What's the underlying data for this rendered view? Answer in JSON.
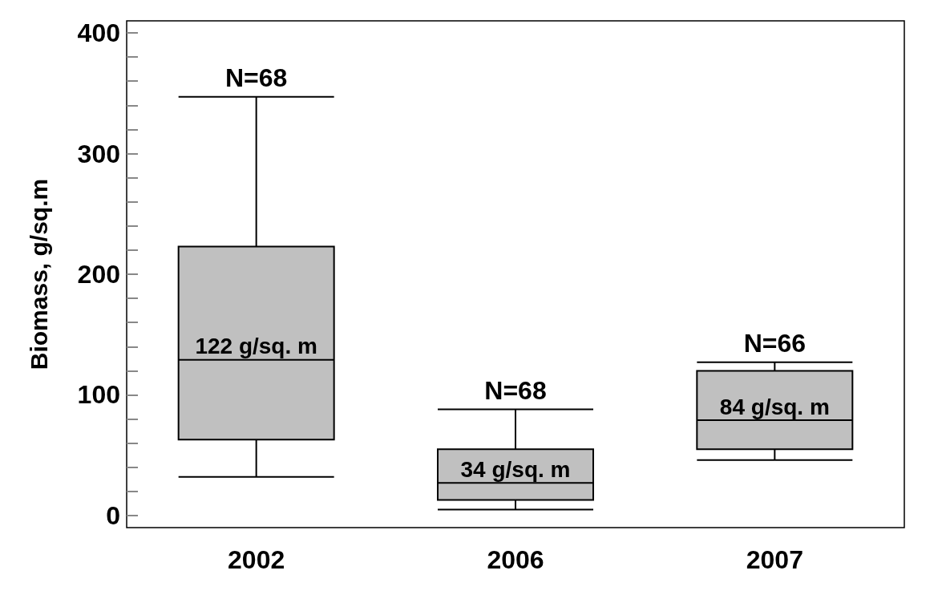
{
  "chart_data": {
    "type": "box",
    "ylabel": "Biomass, g/sq.m",
    "categories": [
      "2002",
      "2006",
      "2007"
    ],
    "color": "#c0c0c0",
    "boxes": [
      {
        "low": 32,
        "q1": 63,
        "median": 129,
        "q3": 223,
        "high": 347
      },
      {
        "low": 5,
        "q1": 13,
        "median": 27,
        "q3": 55,
        "high": 88
      },
      {
        "low": 46,
        "q1": 55,
        "median": 79,
        "q3": 120,
        "high": 127
      }
    ],
    "ylim": [
      -10,
      410
    ],
    "yticks": [
      0,
      {
        "value": 20,
        "label": null
      },
      {
        "value": 40,
        "label": null
      },
      {
        "value": 60,
        "label": null
      },
      {
        "value": 80,
        "label": null
      },
      100,
      {
        "value": 120,
        "label": null
      },
      {
        "value": 140,
        "label": null
      },
      {
        "value": 160,
        "label": null
      },
      {
        "value": 180,
        "label": null
      },
      200,
      {
        "value": 220,
        "label": null
      },
      {
        "value": 240,
        "label": null
      },
      {
        "value": 260,
        "label": null
      },
      {
        "value": 280,
        "label": null
      },
      300,
      {
        "value": 320,
        "label": null
      },
      {
        "value": 340,
        "label": null
      },
      {
        "value": 360,
        "label": null
      },
      {
        "value": 380,
        "label": null
      },
      400
    ],
    "grid": false,
    "annotations": [
      "N=68",
      "N=68",
      "N=66",
      {
        "text": "122 g/sq. m",
        "x": "2002",
        "y": 129
      },
      {
        "text": "34 g/sq. m",
        "x": "2006",
        "y": 27
      },
      {
        "text": "84 g/sq. m",
        "x": "2007",
        "y": 79
      }
    ]
  }
}
